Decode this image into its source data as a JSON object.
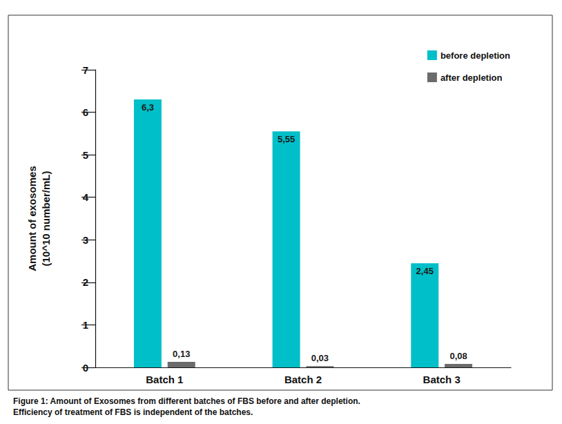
{
  "chart_data": {
    "type": "bar",
    "title": "Figure 1: Amount of Exosomes from different batches of FBS before and after depletion.",
    "subtitle": "Efficiency of treatment of FBS is independent of the batches.",
    "ylabel": "Amount of exosomes\n(10^10 number/mL)",
    "categories": [
      "Batch 1",
      "Batch 2",
      "Batch 3"
    ],
    "series": [
      {
        "name": "before depletion",
        "color": "#00bfc8",
        "values": [
          6.3,
          5.55,
          2.45
        ],
        "value_labels": [
          "6,3",
          "5,55",
          "2,45"
        ]
      },
      {
        "name": "after depletion",
        "color": "#6b6b6b",
        "values": [
          0.13,
          0.03,
          0.08
        ],
        "value_labels": [
          "0,13",
          "0,03",
          "0,08"
        ]
      }
    ],
    "ylim": [
      0,
      7
    ],
    "yticks": [
      0,
      1,
      2,
      3,
      4,
      5,
      6,
      7
    ],
    "grid": false,
    "legend": "upper right",
    "data_labels": true
  }
}
